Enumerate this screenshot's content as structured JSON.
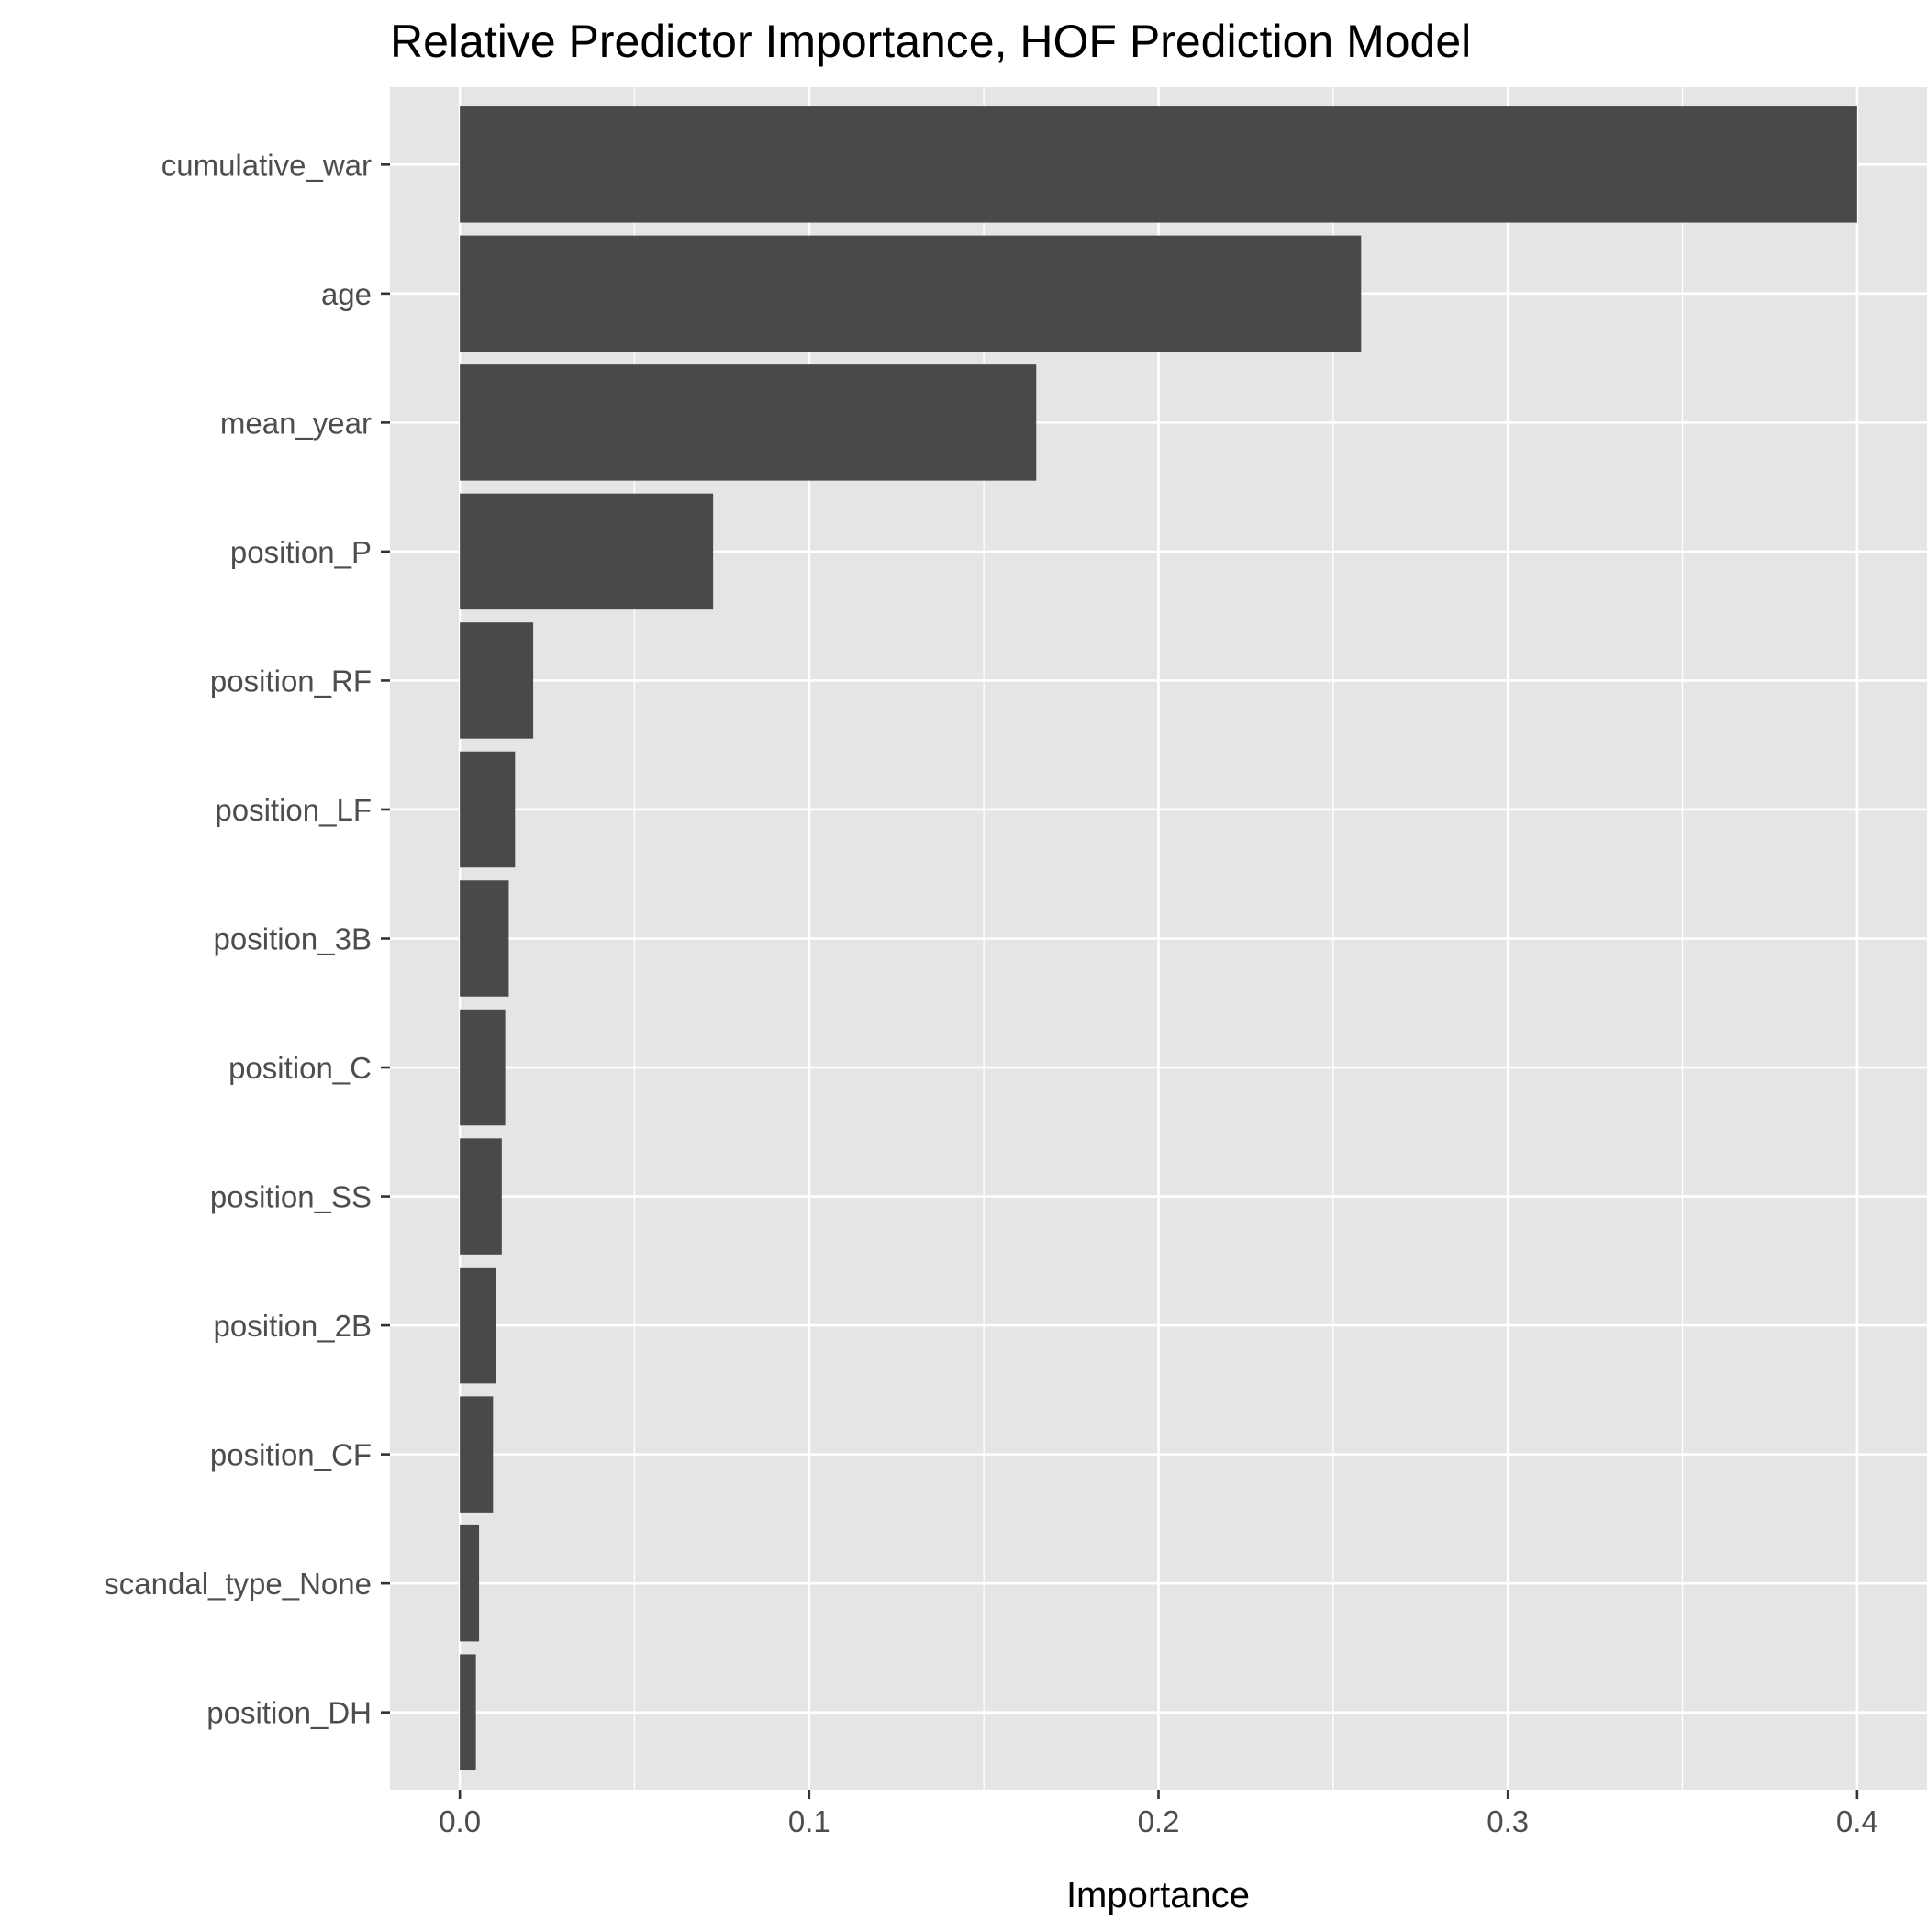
{
  "chart_data": {
    "type": "bar",
    "orientation": "horizontal",
    "title": "Relative Predictor Importance, HOF Prediction Model",
    "xlabel": "Importance",
    "ylabel": "",
    "categories": [
      "cumulative_war",
      "age",
      "mean_year",
      "position_P",
      "position_RF",
      "position_LF",
      "position_3B",
      "position_C",
      "position_SS",
      "position_2B",
      "position_CF",
      "scandal_type_None",
      "position_DH"
    ],
    "values": [
      0.4,
      0.258,
      0.165,
      0.0725,
      0.021,
      0.0158,
      0.014,
      0.013,
      0.012,
      0.0103,
      0.0095,
      0.0055,
      0.0046
    ],
    "xlim": [
      -0.02,
      0.42
    ],
    "xticks": [
      0.0,
      0.1,
      0.2,
      0.3,
      0.4
    ],
    "xtick_labels": [
      "0.0",
      "0.1",
      "0.2",
      "0.3",
      "0.4"
    ],
    "grid": true,
    "legend": "none",
    "colors": {
      "bar": "#494949",
      "panel_background": "#e5e5e5",
      "grid": "#ffffff",
      "tick_text": "#4d4d4d",
      "tick_mark": "#333333",
      "title_text": "#000000"
    }
  }
}
